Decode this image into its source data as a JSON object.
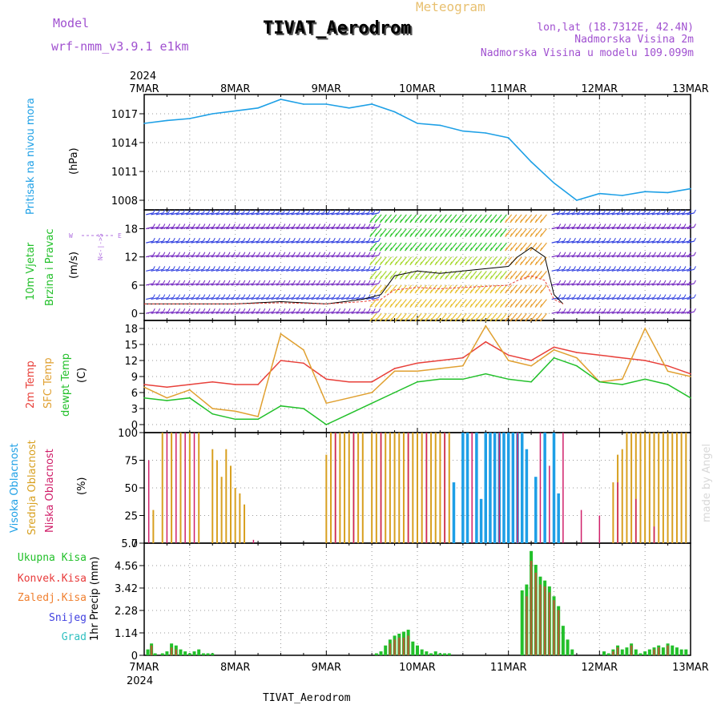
{
  "header": {
    "model_label": "Model",
    "model_value": "wrf-nmm_v3.9.1 e1km",
    "meteogram": "Meteogram",
    "title": "TIVAT_Aerodrom",
    "lonlat": "lon,lat (18.7312E, 42.4N)",
    "elev_2m": "Nadmorska Visina 2m",
    "elev_model": "Nadmorska Visina u modelu 109.099m",
    "signature": "made by Angel",
    "footer_station": "TIVAT_Aerodrom"
  },
  "colors": {
    "pressure": "#1ea0e6",
    "temp2m": "#e8403a",
    "sfc": "#e0a030",
    "dew": "#22c02a",
    "high_cloud": "#1e9fe6",
    "mid_cloud": "#d8a020",
    "low_cloud": "#d0206a",
    "total_precip": "#22c02a",
    "conv_precip": "#e83a3a",
    "frozen": "#f08030",
    "snow": "#4040e0",
    "hail": "#30c0c0",
    "wind_label": "#22c02a",
    "model_text": "#a050d0"
  },
  "chart_data": [
    {
      "type": "line",
      "panel": "pressure",
      "ylabel_main": "Pritisak na nivou mora",
      "ylabel_unit": "(hPa)",
      "yticks": [
        1008,
        1011,
        1014,
        1017
      ],
      "ylim": [
        1007,
        1019
      ],
      "x_days": [
        0,
        0.25,
        0.5,
        0.75,
        1,
        1.25,
        1.5,
        1.75,
        2,
        2.25,
        2.5,
        2.75,
        3,
        3.25,
        3.5,
        3.75,
        4,
        4.25,
        4.5,
        4.75,
        5,
        5.25,
        5.5,
        5.75,
        6
      ],
      "values": [
        1016.0,
        1016.3,
        1016.5,
        1017.0,
        1017.3,
        1017.6,
        1018.5,
        1018.0,
        1018.0,
        1017.6,
        1018.0,
        1017.2,
        1016.0,
        1015.8,
        1015.2,
        1015.0,
        1014.5,
        1012.0,
        1009.8,
        1008.0,
        1008.7,
        1008.5,
        1008.9,
        1008.8,
        1009.2
      ]
    },
    {
      "type": "line",
      "panel": "wind",
      "ylabel_main": "10m Vjetar",
      "ylabel_sub": "Brzina i Pravac",
      "ylabel_unit": "(m/s)",
      "compass": "N<-|->S",
      "yticks": [
        0,
        6,
        12,
        18
      ],
      "ylim": [
        -1.5,
        22
      ],
      "x_days": [
        0,
        0.5,
        1,
        1.5,
        2,
        2.4,
        2.6,
        2.75,
        3.0,
        3.25,
        3.5,
        3.75,
        4.0,
        4.1,
        4.25,
        4.4,
        4.5,
        4.6
      ],
      "values": [
        2,
        2,
        2,
        2.5,
        2,
        3,
        4,
        8,
        9,
        8.5,
        9,
        9.5,
        10,
        12,
        14,
        12,
        4,
        2
      ]
    },
    {
      "type": "line",
      "panel": "temperature",
      "ylabel": "(C)",
      "series_labels": [
        "2m Temp",
        "SFC Temp",
        "dewpt Temp"
      ],
      "yticks": [
        0,
        3,
        6,
        9,
        12,
        15,
        18
      ],
      "ylim": [
        -1.5,
        19.5
      ],
      "x_days": [
        0,
        0.25,
        0.5,
        0.75,
        1,
        1.25,
        1.5,
        1.75,
        2,
        2.25,
        2.5,
        2.75,
        3,
        3.25,
        3.5,
        3.75,
        4,
        4.25,
        4.5,
        4.75,
        5,
        5.25,
        5.5,
        5.75,
        6
      ],
      "series": [
        {
          "name": "2m Temp",
          "values": [
            7.5,
            7.0,
            7.5,
            8.0,
            7.5,
            7.5,
            12.0,
            11.5,
            8.5,
            8.0,
            8.0,
            10.5,
            11.5,
            12.0,
            12.5,
            15.5,
            13.0,
            12.0,
            14.5,
            13.5,
            13.0,
            12.5,
            12.0,
            11.0,
            9.5
          ]
        },
        {
          "name": "SFC Temp",
          "values": [
            7.0,
            5.0,
            6.5,
            3.0,
            2.5,
            1.5,
            17.0,
            14.0,
            4.0,
            5.0,
            6.0,
            10.0,
            10.0,
            10.5,
            11.0,
            18.5,
            12.0,
            11.0,
            14.0,
            12.5,
            8.0,
            8.5,
            18.0,
            10.0,
            9.0
          ]
        },
        {
          "name": "dewpt Temp",
          "values": [
            5.0,
            4.5,
            5.0,
            2.0,
            1.0,
            1.0,
            3.5,
            3.0,
            0.0,
            2.0,
            4.0,
            6.0,
            8.0,
            8.5,
            8.5,
            9.5,
            8.5,
            8.0,
            12.5,
            11.0,
            8.0,
            7.5,
            8.5,
            7.5,
            5.0
          ]
        }
      ]
    },
    {
      "type": "bar",
      "panel": "clouds",
      "ylabel": "(%)",
      "series_labels": [
        "Visoka Oblacnost",
        "Srednja Oblacnost",
        "Niska Oblacnost"
      ],
      "yticks": [
        0,
        25,
        50,
        75,
        100
      ],
      "ylim": [
        0,
        100
      ],
      "series": [
        {
          "name": "Visoka Oblacnost",
          "x_days": [
            3.4,
            3.5,
            3.55,
            3.65,
            3.7,
            3.75,
            3.8,
            3.85,
            3.9,
            3.95,
            4.0,
            4.05,
            4.1,
            4.15,
            4.2,
            4.3,
            4.4,
            4.5,
            4.55
          ],
          "values": [
            55,
            100,
            100,
            100,
            40,
            100,
            100,
            100,
            100,
            100,
            100,
            100,
            100,
            100,
            85,
            60,
            100,
            100,
            45
          ]
        },
        {
          "name": "Srednja Oblacnost",
          "x_days": [
            0.1,
            0.2,
            0.3,
            0.4,
            0.5,
            0.6,
            0.75,
            0.8,
            0.85,
            0.9,
            0.95,
            1.0,
            1.05,
            1.1,
            2.0,
            2.05,
            2.1,
            2.15,
            2.2,
            2.25,
            2.3,
            2.35,
            2.4,
            2.5,
            2.55,
            2.6,
            2.65,
            2.7,
            2.75,
            2.8,
            2.85,
            2.9,
            2.95,
            3.0,
            3.05,
            3.1,
            3.15,
            3.2,
            3.25,
            3.3,
            3.35,
            5.15,
            5.2,
            5.25,
            5.3,
            5.35,
            5.4,
            5.45,
            5.5,
            5.55,
            5.6,
            5.65,
            5.7,
            5.75,
            5.8,
            5.85,
            5.9,
            5.95
          ],
          "values": [
            30,
            100,
            100,
            100,
            100,
            100,
            85,
            75,
            60,
            85,
            70,
            50,
            45,
            35,
            80,
            100,
            100,
            100,
            100,
            100,
            100,
            100,
            100,
            100,
            100,
            100,
            100,
            100,
            100,
            100,
            100,
            100,
            100,
            100,
            100,
            100,
            100,
            100,
            100,
            100,
            100,
            55,
            80,
            85,
            100,
            100,
            100,
            100,
            100,
            100,
            100,
            100,
            100,
            100,
            100,
            100,
            100,
            100
          ]
        },
        {
          "name": "Niska Oblacnost",
          "x_days": [
            0.05,
            0.25,
            0.35,
            0.45,
            0.55,
            1.2,
            2.1,
            2.3,
            2.6,
            2.9,
            3.1,
            3.3,
            3.6,
            3.9,
            4.1,
            4.35,
            4.45,
            4.6,
            4.8,
            5.0,
            5.2,
            5.4,
            5.6
          ],
          "values": [
            75,
            100,
            100,
            100,
            100,
            3,
            100,
            100,
            100,
            100,
            100,
            100,
            100,
            100,
            100,
            100,
            70,
            100,
            30,
            25,
            55,
            40,
            15
          ]
        }
      ]
    },
    {
      "type": "bar",
      "panel": "precipitation",
      "ylabel": "1hr Precip (mm)",
      "series_labels": [
        "Ukupna Kisa",
        "Konvek.Kisa",
        "Zaledj.Kisa",
        "Snijeg",
        "Grad"
      ],
      "yticks": [
        0,
        1.14,
        2.28,
        3.42,
        4.56,
        5.7
      ],
      "ylim": [
        0,
        5.7
      ],
      "series": [
        {
          "name": "Ukupna Kisa",
          "x_days": [
            0.04,
            0.08,
            0.12,
            0.2,
            0.25,
            0.3,
            0.35,
            0.4,
            0.45,
            0.5,
            0.55,
            0.6,
            0.65,
            0.7,
            0.75,
            2.55,
            2.6,
            2.65,
            2.7,
            2.75,
            2.8,
            2.85,
            2.9,
            2.95,
            3.0,
            3.05,
            3.1,
            3.15,
            3.2,
            3.25,
            3.3,
            3.35,
            4.15,
            4.2,
            4.25,
            4.3,
            4.35,
            4.4,
            4.45,
            4.5,
            4.55,
            4.6,
            4.65,
            4.7,
            5.05,
            5.1,
            5.15,
            5.2,
            5.25,
            5.3,
            5.35,
            5.4,
            5.45,
            5.5,
            5.55,
            5.6,
            5.65,
            5.7,
            5.75,
            5.8,
            5.85,
            5.9,
            5.95
          ],
          "values": [
            0.3,
            0.6,
            0.1,
            0.1,
            0.2,
            0.6,
            0.5,
            0.3,
            0.2,
            0.1,
            0.2,
            0.3,
            0.1,
            0.1,
            0.1,
            0.1,
            0.2,
            0.5,
            0.8,
            1.0,
            1.1,
            1.2,
            1.3,
            0.7,
            0.5,
            0.3,
            0.2,
            0.1,
            0.2,
            0.1,
            0.1,
            0.1,
            3.3,
            3.6,
            5.3,
            4.6,
            4.0,
            3.8,
            3.5,
            3.0,
            2.5,
            1.5,
            0.8,
            0.3,
            0.2,
            0.1,
            0.3,
            0.5,
            0.3,
            0.4,
            0.6,
            0.3,
            0.1,
            0.2,
            0.3,
            0.4,
            0.5,
            0.4,
            0.6,
            0.5,
            0.4,
            0.3,
            0.3
          ]
        },
        {
          "name": "Konvek.Kisa",
          "x_days": [
            0.08,
            0.3,
            0.35,
            2.7,
            2.75,
            2.8,
            2.85,
            2.9,
            4.2,
            4.25,
            4.3,
            4.35,
            4.4,
            4.45,
            4.5,
            4.55,
            5.15,
            5.2,
            5.35,
            5.6,
            5.65,
            5.75
          ],
          "values": [
            0.5,
            0.4,
            0.3,
            0.6,
            0.8,
            0.9,
            0.9,
            1.0,
            3.0,
            4.8,
            4.2,
            3.6,
            3.5,
            3.2,
            2.8,
            2.3,
            0.2,
            0.4,
            0.5,
            0.3,
            0.4,
            0.5
          ]
        }
      ]
    }
  ],
  "xaxis": {
    "year": "2024",
    "ticks": [
      "7MAR",
      "8MAR",
      "9MAR",
      "10MAR",
      "11MAR",
      "12MAR",
      "13MAR"
    ]
  }
}
